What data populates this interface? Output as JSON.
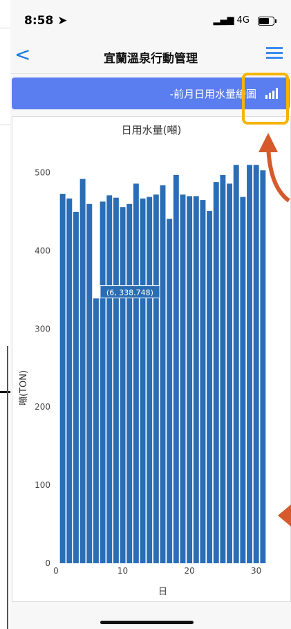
{
  "status": {
    "time": "8:58",
    "network": "4G"
  },
  "nav": {
    "back_label": "<",
    "title": "宜蘭溫泉行動管理"
  },
  "banner": {
    "text": "-前月日用水量繪圖"
  },
  "chart_data": {
    "type": "bar",
    "title": "日用水量(噸)",
    "xlabel": "日",
    "ylabel": "噸(TON)",
    "x": [
      1,
      2,
      3,
      4,
      5,
      6,
      7,
      8,
      9,
      10,
      11,
      12,
      13,
      14,
      15,
      16,
      17,
      18,
      19,
      20,
      21,
      22,
      23,
      24,
      25,
      26,
      27,
      28,
      29,
      30,
      31
    ],
    "values": [
      473,
      467,
      450,
      492,
      460,
      339,
      463,
      471,
      468,
      456,
      460,
      486,
      467,
      469,
      472,
      484,
      441,
      497,
      472,
      470,
      470,
      465,
      451,
      488,
      497,
      486,
      510,
      469,
      510,
      510,
      503
    ],
    "ylim": [
      0,
      520
    ],
    "xlim": [
      0,
      32
    ],
    "y_ticks": [
      "0",
      "100",
      "200",
      "300",
      "400",
      "500"
    ],
    "x_ticks": [
      "0",
      "10",
      "20",
      "30"
    ],
    "tooltip": "(6, 338.748)",
    "bar_color": "#2a6db5"
  }
}
